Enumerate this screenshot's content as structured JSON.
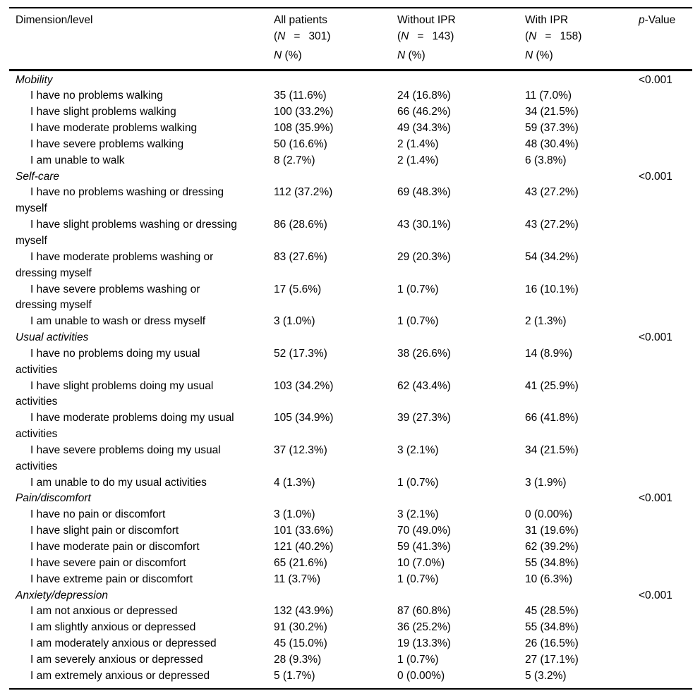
{
  "header": {
    "dimension_label": "Dimension/level",
    "groups": [
      {
        "title": "All patients",
        "paren": "(",
        "n_symbol": "N",
        "equals": "=",
        "n_value": "301)",
        "sub_symbol": "N",
        "sub_rest": " (%)"
      },
      {
        "title": "Without IPR",
        "paren": "(",
        "n_symbol": "N",
        "equals": "=",
        "n_value": "143)",
        "sub_symbol": "N",
        "sub_rest": " (%)"
      },
      {
        "title": "With IPR",
        "paren": "(",
        "n_symbol": "N",
        "equals": "=",
        "n_value": "158)",
        "sub_symbol": "N",
        "sub_rest": " (%)"
      }
    ],
    "p_symbol": "p",
    "p_rest": "-Value"
  },
  "sections": [
    {
      "name": "Mobility",
      "p_value": "<0.001",
      "rows": [
        {
          "line1": "I have no problems walking",
          "line2": "",
          "all": "35 (11.6%)",
          "without": "24 (16.8%)",
          "with": "11 (7.0%)"
        },
        {
          "line1": "I have slight problems walking",
          "line2": "",
          "all": "100 (33.2%)",
          "without": "66 (46.2%)",
          "with": "34 (21.5%)"
        },
        {
          "line1": "I have moderate problems walking",
          "line2": "",
          "all": "108 (35.9%)",
          "without": "49 (34.3%)",
          "with": "59 (37.3%)"
        },
        {
          "line1": "I have severe problems walking",
          "line2": "",
          "all": "50 (16.6%)",
          "without": "2 (1.4%)",
          "with": "48 (30.4%)"
        },
        {
          "line1": "I am unable to walk",
          "line2": "",
          "all": "8 (2.7%)",
          "without": "2 (1.4%)",
          "with": "6 (3.8%)"
        }
      ]
    },
    {
      "name": "Self-care",
      "p_value": "<0.001",
      "rows": [
        {
          "line1": "I have no problems washing or dressing",
          "line2": "myself",
          "all": "112 (37.2%)",
          "without": "69 (48.3%)",
          "with": "43 (27.2%)"
        },
        {
          "line1": "I have slight problems washing or dressing",
          "line2": "myself",
          "all": "86 (28.6%)",
          "without": "43 (30.1%)",
          "with": "43 (27.2%)"
        },
        {
          "line1": "I have moderate problems washing or",
          "line2": "dressing myself",
          "all": "83 (27.6%)",
          "without": "29 (20.3%)",
          "with": "54 (34.2%)"
        },
        {
          "line1": "I have severe problems washing or",
          "line2": "dressing myself",
          "all": "17 (5.6%)",
          "without": "1 (0.7%)",
          "with": "16 (10.1%)"
        },
        {
          "line1": "I am unable to wash or dress myself",
          "line2": "",
          "all": "3 (1.0%)",
          "without": "1 (0.7%)",
          "with": "2 (1.3%)"
        }
      ]
    },
    {
      "name": "Usual activities",
      "p_value": "<0.001",
      "rows": [
        {
          "line1": "I have no problems doing my usual",
          "line2": "activities",
          "all": "52 (17.3%)",
          "without": "38 (26.6%)",
          "with": "14 (8.9%)"
        },
        {
          "line1": "I have slight problems doing my usual",
          "line2": "activities",
          "all": "103 (34.2%)",
          "without": "62 (43.4%)",
          "with": "41 (25.9%)"
        },
        {
          "line1": "I have moderate problems doing my usual",
          "line2": "activities",
          "all": "105 (34.9%)",
          "without": "39 (27.3%)",
          "with": "66 (41.8%)"
        },
        {
          "line1": "I have severe problems doing my usual",
          "line2": "activities",
          "all": "37 (12.3%)",
          "without": "3 (2.1%)",
          "with": "34 (21.5%)"
        },
        {
          "line1": "I am unable to do my usual activities",
          "line2": "",
          "all": "4 (1.3%)",
          "without": "1 (0.7%)",
          "with": "3 (1.9%)"
        }
      ]
    },
    {
      "name": "Pain/discomfort",
      "p_value": "<0.001",
      "rows": [
        {
          "line1": "I have no pain or discomfort",
          "line2": "",
          "all": "3 (1.0%)",
          "without": "3 (2.1%)",
          "with": "0 (0.00%)"
        },
        {
          "line1": "I have slight pain or discomfort",
          "line2": "",
          "all": "101 (33.6%)",
          "without": "70 (49.0%)",
          "with": "31 (19.6%)"
        },
        {
          "line1": "I have moderate pain or discomfort",
          "line2": "",
          "all": "121 (40.2%)",
          "without": "59 (41.3%)",
          "with": "62 (39.2%)"
        },
        {
          "line1": "I have severe pain or discomfort",
          "line2": "",
          "all": "65 (21.6%)",
          "without": "10 (7.0%)",
          "with": "55 (34.8%)"
        },
        {
          "line1": "I have extreme pain or discomfort",
          "line2": "",
          "all": "11 (3.7%)",
          "without": "1 (0.7%)",
          "with": "10 (6.3%)"
        }
      ]
    },
    {
      "name": "Anxiety/depression",
      "p_value": "<0.001",
      "rows": [
        {
          "line1": "I am not anxious or depressed",
          "line2": "",
          "all": "132 (43.9%)",
          "without": "87 (60.8%)",
          "with": "45 (28.5%)"
        },
        {
          "line1": "I am slightly anxious or depressed",
          "line2": "",
          "all": "91 (30.2%)",
          "without": "36 (25.2%)",
          "with": "55 (34.8%)"
        },
        {
          "line1": "I am moderately anxious or depressed",
          "line2": "",
          "all": "45 (15.0%)",
          "without": "19 (13.3%)",
          "with": "26 (16.5%)"
        },
        {
          "line1": "I am severely anxious or depressed",
          "line2": "",
          "all": "28 (9.3%)",
          "without": "1 (0.7%)",
          "with": "27 (17.1%)"
        },
        {
          "line1": "I am extremely anxious or depressed",
          "line2": "",
          "all": "5 (1.7%)",
          "without": "0 (0.00%)",
          "with": "5 (3.2%)"
        }
      ]
    }
  ]
}
